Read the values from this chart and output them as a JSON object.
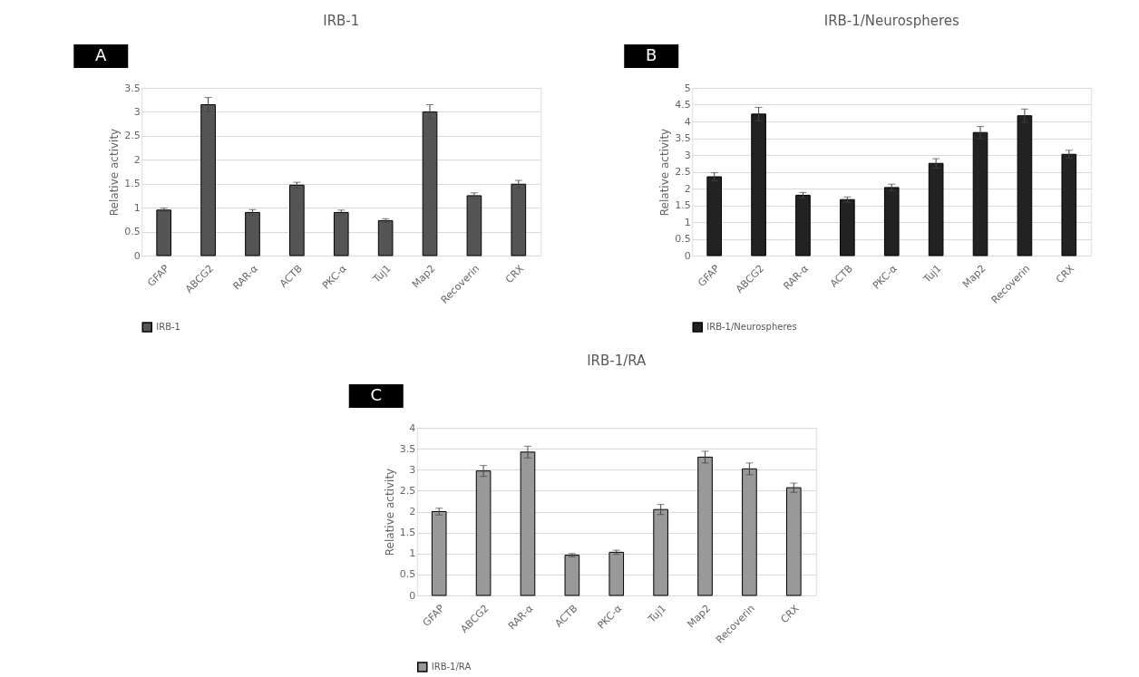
{
  "chart_data": [
    {
      "type": "bar",
      "title": "IRB-1",
      "annotations": [
        "A"
      ],
      "ylabel": "Relative activity",
      "categories": [
        "GFAP",
        "ABCG2",
        "RAR-α",
        "ACTB",
        "PKC-α",
        "Tuj1",
        "Map2",
        "Recoverin",
        "CRX"
      ],
      "series": [
        {
          "name": "IRB-1",
          "color": "#555555",
          "values": [
            0.95,
            3.15,
            0.9,
            1.47,
            0.9,
            0.73,
            3.0,
            1.25,
            1.49
          ],
          "errors": [
            0.04,
            0.15,
            0.06,
            0.06,
            0.05,
            0.04,
            0.15,
            0.06,
            0.08
          ]
        }
      ],
      "ylim": [
        0,
        3.5
      ],
      "yticks": [
        0,
        0.5,
        1,
        1.5,
        2,
        2.5,
        3,
        3.5
      ],
      "grid": "y",
      "legend": "bottom"
    },
    {
      "type": "bar",
      "title": "IRB-1/Neurospheres",
      "annotations": [
        "B"
      ],
      "ylabel": "Relative activity",
      "categories": [
        "GFAP",
        "ABCG2",
        "RAR-α",
        "ACTB",
        "PKC-α",
        "Tuj1",
        "Map2",
        "Recoverin",
        "CRX"
      ],
      "series": [
        {
          "name": "IRB-1/Neurospheres",
          "color": "#222222",
          "values": [
            2.35,
            4.22,
            1.8,
            1.67,
            2.03,
            2.75,
            3.67,
            4.17,
            3.02
          ],
          "errors": [
            0.12,
            0.2,
            0.08,
            0.08,
            0.1,
            0.14,
            0.18,
            0.2,
            0.12
          ]
        }
      ],
      "ylim": [
        0,
        5
      ],
      "yticks": [
        0,
        0.5,
        1,
        1.5,
        2,
        2.5,
        3,
        3.5,
        4,
        4.5,
        5
      ],
      "grid": "y",
      "legend": "bottom"
    },
    {
      "type": "bar",
      "title": "IRB-1/RA",
      "annotations": [
        "C"
      ],
      "ylabel": "Relative activity",
      "categories": [
        "GFAP",
        "ABCG2",
        "RAR-α",
        "ACTB",
        "PKC-α",
        "Tuj1",
        "Map2",
        "Recoverin",
        "CRX"
      ],
      "series": [
        {
          "name": "IRB-1/RA",
          "color": "#999999",
          "values": [
            2.0,
            2.97,
            3.42,
            0.96,
            1.03,
            2.05,
            3.3,
            3.02,
            2.57
          ],
          "errors": [
            0.08,
            0.13,
            0.14,
            0.04,
            0.05,
            0.12,
            0.14,
            0.14,
            0.11
          ]
        }
      ],
      "ylim": [
        0,
        4
      ],
      "yticks": [
        0,
        0.5,
        1,
        1.5,
        2,
        2.5,
        3,
        3.5,
        4
      ],
      "grid": "y",
      "legend": "bottom"
    }
  ]
}
